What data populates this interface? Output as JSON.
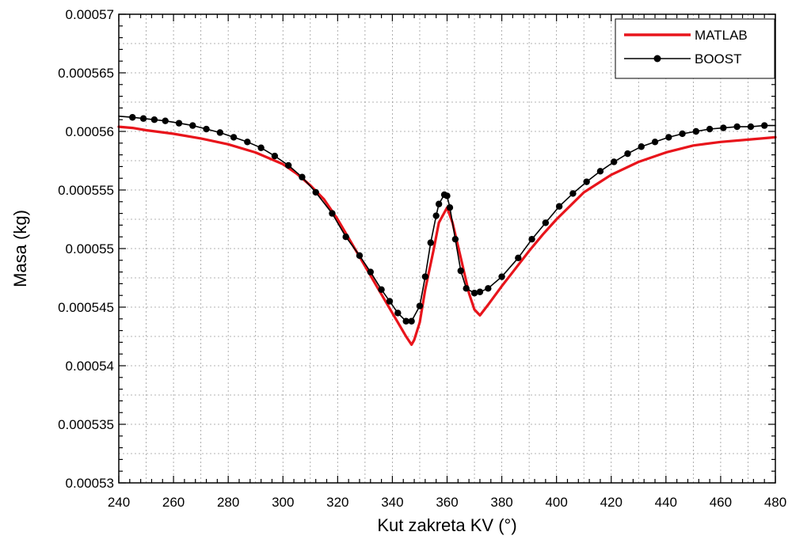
{
  "chart_data": {
    "type": "line",
    "title": "",
    "xlabel": "Kut zakreta KV (°)",
    "ylabel": "Masa (kg)",
    "xlim": [
      240,
      480
    ],
    "ylim": [
      0.00053,
      0.00057
    ],
    "x_ticks": [
      240,
      260,
      280,
      300,
      320,
      340,
      360,
      380,
      400,
      420,
      440,
      460,
      480
    ],
    "x_tick_labels": [
      "240",
      "260",
      "280",
      "300",
      "320",
      "340",
      "360",
      "380",
      "400",
      "420",
      "440",
      "460",
      "480"
    ],
    "y_ticks": [
      0.00053,
      0.000535,
      0.00054,
      0.000545,
      0.00055,
      0.000555,
      0.00056,
      0.000565,
      0.00057
    ],
    "y_tick_labels": [
      "0.00053",
      "0.000535",
      "0.00054",
      "0.000545",
      "0.00055",
      "0.000555",
      "0.00056",
      "0.000565",
      "0.00057"
    ],
    "grid": true,
    "legend_position": "top-right",
    "series": [
      {
        "name": "MATLAB",
        "color": "#e8141b",
        "marker": "none",
        "x": [
          240,
          245,
          250,
          260,
          270,
          280,
          290,
          300,
          305,
          310,
          315,
          320,
          325,
          330,
          335,
          340,
          343,
          345,
          347,
          348,
          350,
          352,
          355,
          357,
          360,
          362,
          365,
          368,
          370,
          372,
          375,
          380,
          385,
          390,
          395,
          400,
          410,
          420,
          430,
          440,
          450,
          460,
          470,
          480
        ],
        "y": [
          0.0005604,
          0.0005603,
          0.0005601,
          0.0005598,
          0.0005594,
          0.0005589,
          0.0005582,
          0.0005572,
          0.0005564,
          0.0005554,
          0.0005542,
          0.0005525,
          0.0005505,
          0.0005485,
          0.0005465,
          0.0005445,
          0.0005433,
          0.0005425,
          0.0005418,
          0.0005422,
          0.0005437,
          0.0005465,
          0.0005498,
          0.0005522,
          0.0005535,
          0.0005522,
          0.0005492,
          0.0005462,
          0.0005448,
          0.0005443,
          0.0005452,
          0.0005468,
          0.0005483,
          0.0005498,
          0.0005512,
          0.0005525,
          0.0005548,
          0.0005563,
          0.0005574,
          0.0005582,
          0.0005588,
          0.0005591,
          0.0005593,
          0.0005595
        ]
      },
      {
        "name": "BOOST",
        "color": "#000000",
        "marker": "circle",
        "x": [
          240,
          245,
          249,
          253,
          257,
          262,
          267,
          272,
          277,
          282,
          287,
          292,
          297,
          302,
          307,
          312,
          318,
          323,
          328,
          332,
          336,
          339,
          342,
          345,
          347,
          350,
          352,
          354,
          356,
          357,
          359,
          360,
          361,
          363,
          365,
          367,
          370,
          372,
          375,
          380,
          386,
          391,
          396,
          401,
          406,
          411,
          416,
          421,
          426,
          431,
          436,
          441,
          446,
          451,
          456,
          461,
          466,
          471,
          476,
          480
        ],
        "y": [
          0.0005613,
          0.0005612,
          0.0005611,
          0.000561,
          0.0005609,
          0.0005607,
          0.0005605,
          0.0005602,
          0.0005599,
          0.0005595,
          0.0005591,
          0.0005586,
          0.0005579,
          0.0005571,
          0.0005561,
          0.0005548,
          0.000553,
          0.000551,
          0.0005494,
          0.000548,
          0.0005465,
          0.0005455,
          0.0005445,
          0.0005438,
          0.0005438,
          0.0005451,
          0.0005476,
          0.0005505,
          0.0005528,
          0.0005538,
          0.0005546,
          0.0005545,
          0.0005535,
          0.0005508,
          0.0005481,
          0.0005466,
          0.0005462,
          0.0005463,
          0.0005466,
          0.0005476,
          0.0005492,
          0.0005508,
          0.0005522,
          0.0005536,
          0.0005547,
          0.0005557,
          0.0005566,
          0.0005574,
          0.0005581,
          0.0005587,
          0.0005591,
          0.0005595,
          0.0005598,
          0.00056,
          0.0005602,
          0.0005603,
          0.0005604,
          0.0005604,
          0.0005605,
          0.0005605
        ]
      }
    ]
  }
}
